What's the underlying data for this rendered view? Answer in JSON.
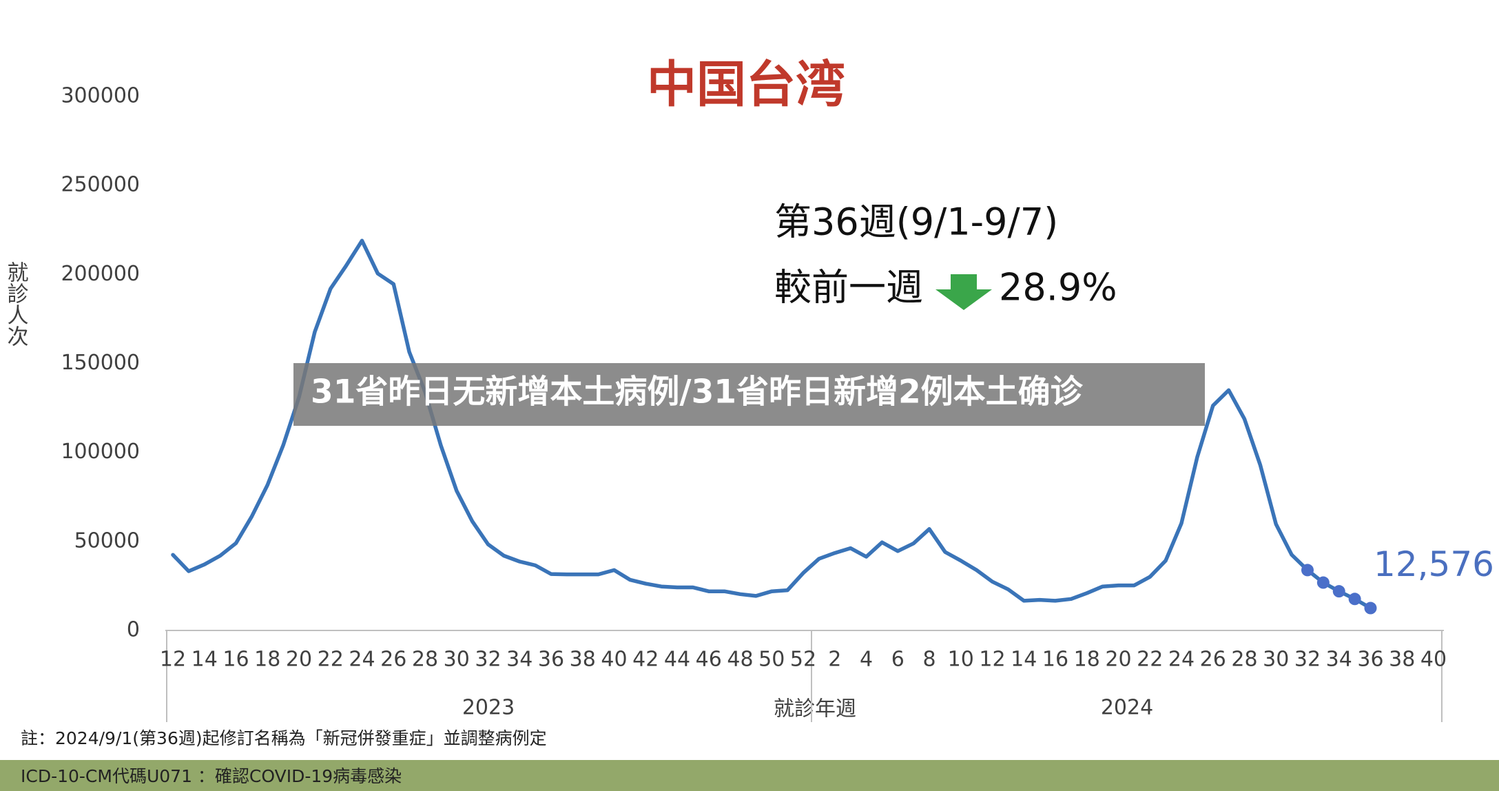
{
  "chart_data": {
    "type": "line",
    "title": "中国台湾",
    "ylabel": "就診人次",
    "xlabel": "就診年週",
    "groups": [
      "2023",
      "2024"
    ],
    "week_note": "第36週(9/1-9/7)",
    "compare_label": "較前一週",
    "change": "28.9%",
    "categories": [
      "12",
      null,
      "14",
      null,
      "16",
      null,
      "18",
      null,
      "20",
      null,
      "22",
      null,
      "24",
      null,
      "26",
      null,
      "28",
      null,
      "30",
      null,
      "32",
      null,
      "34",
      null,
      "36",
      null,
      "38",
      null,
      "40",
      null,
      "42",
      null,
      "44",
      null,
      "46",
      null,
      "48",
      null,
      "50",
      null,
      "52",
      null,
      "2",
      null,
      "4",
      null,
      "6",
      null,
      "8",
      null,
      "10",
      null,
      "12",
      null,
      "14",
      null,
      "16",
      null,
      "18",
      null,
      "20",
      null,
      "22",
      null,
      "24",
      null,
      "26",
      null,
      "28",
      null,
      "30",
      null,
      "32",
      null,
      "34",
      null,
      "36",
      null,
      "38",
      null,
      "40"
    ],
    "series": [
      {
        "color": "#3a74b8",
        "marker": false,
        "values": [
          42500,
          33300,
          37100,
          42000,
          49000,
          64000,
          81700,
          104000,
          131000,
          167700,
          192000,
          205000,
          219000,
          200500,
          194600,
          156500,
          134000,
          104000,
          78500,
          61300,
          48400,
          42000,
          38700,
          36600,
          31700,
          31500,
          31500,
          31500,
          33900,
          28500,
          26300,
          24700,
          24200,
          24200,
          22000,
          22000,
          20400,
          19400,
          22000,
          22600,
          32300,
          40300,
          43500,
          46200,
          41400,
          49500,
          44600,
          48900,
          57000,
          44100,
          39200,
          33900,
          27400,
          23100,
          16700,
          17200,
          16700,
          17700,
          21000,
          24700,
          25300,
          25300,
          30100,
          39200,
          60200,
          97300,
          126300,
          135000,
          118800,
          93000,
          59700,
          42500,
          33900,
          26900,
          22000,
          17700,
          12576,
          null,
          null,
          null,
          null
        ],
        "value_labels": [
          null,
          null,
          null,
          null,
          null,
          null,
          null,
          null,
          null,
          null,
          null,
          null,
          null,
          null,
          null,
          null,
          null,
          null,
          null,
          null,
          null,
          null,
          null,
          null,
          null,
          null,
          null,
          null,
          null,
          null,
          null,
          null,
          null,
          null,
          null,
          null,
          null,
          null,
          null,
          null,
          null,
          null,
          null,
          null,
          null,
          null,
          null,
          null,
          null,
          null,
          null,
          null,
          null,
          null,
          null,
          null,
          null,
          null,
          null,
          null,
          null,
          null,
          null,
          null,
          null,
          null,
          null,
          null,
          null,
          null,
          null,
          null,
          null,
          null,
          null,
          null,
          "12,576",
          null,
          null,
          null,
          null
        ]
      },
      {
        "color": "#4a6fc9",
        "marker": true,
        "values": [
          null,
          null,
          null,
          null,
          null,
          null,
          null,
          null,
          null,
          null,
          null,
          null,
          null,
          null,
          null,
          null,
          null,
          null,
          null,
          null,
          null,
          null,
          null,
          null,
          null,
          null,
          null,
          null,
          null,
          null,
          null,
          null,
          null,
          null,
          null,
          null,
          null,
          null,
          null,
          null,
          null,
          null,
          null,
          null,
          null,
          null,
          null,
          null,
          null,
          null,
          null,
          null,
          null,
          null,
          null,
          null,
          null,
          null,
          null,
          null,
          null,
          null,
          null,
          null,
          null,
          null,
          null,
          null,
          null,
          null,
          null,
          null,
          33900,
          26900,
          22000,
          17700,
          12576,
          null,
          null,
          null,
          null
        ]
      }
    ],
    "ylim": [
      0,
      300000
    ],
    "yticks": [
      0,
      50000,
      100000,
      150000,
      200000,
      250000,
      300000
    ],
    "grid": false
  },
  "overlay_title": "31省昨日无新增本土病例/31省昨日新增2例本土确诊",
  "footnote": "註：2024/9/1(第36週)起修訂名稱為「新冠併發重症」並調整病例定",
  "footer": "ICD-10-CM代碼U071 ：確認COVID-19病毒感染"
}
